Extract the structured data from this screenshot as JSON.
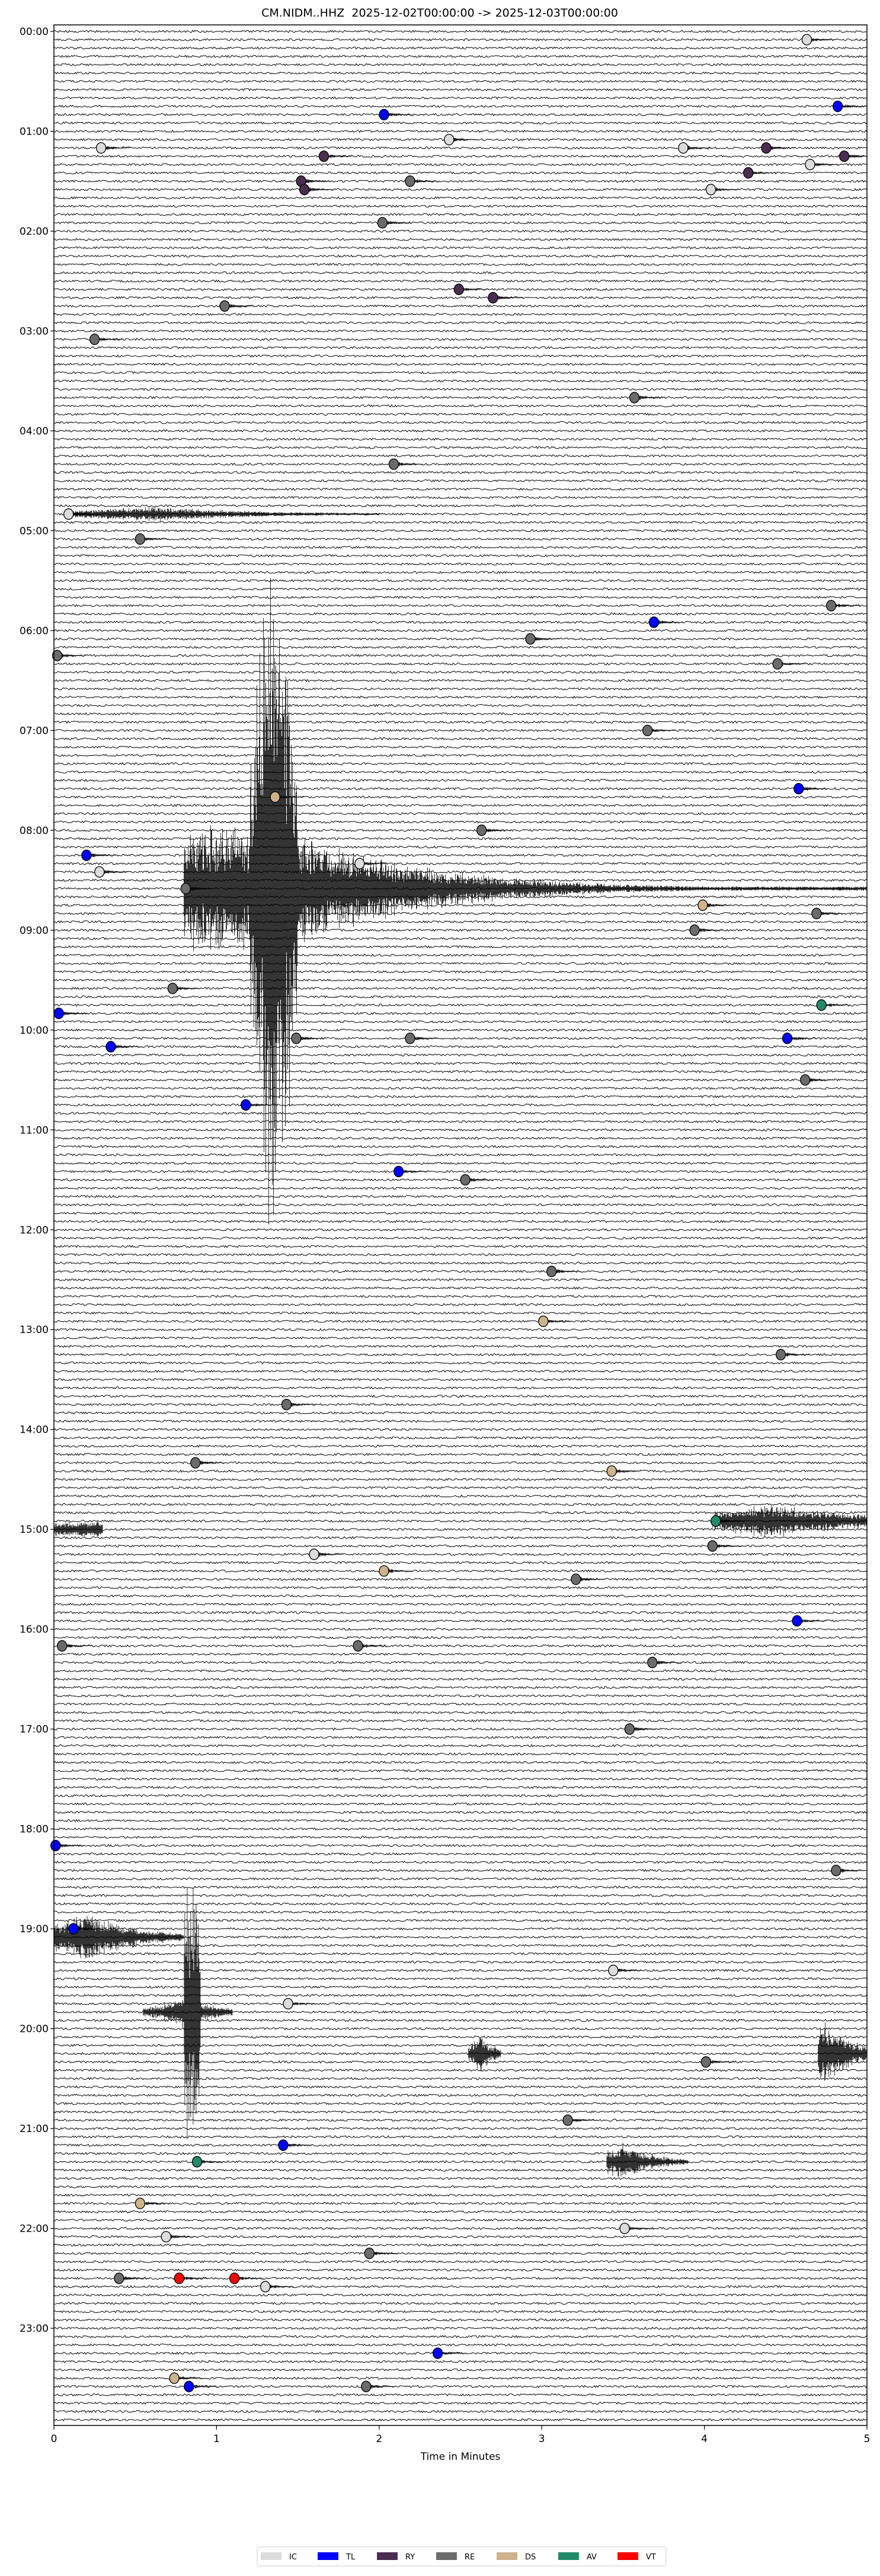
{
  "chart_data": {
    "type": "helicorder",
    "title": "CM.NIDM..HHZ  2025-12-02T00:00:00 -> 2025-12-03T00:00:00",
    "xlabel": "Time in Minutes",
    "xlim": [
      0,
      5
    ],
    "x_ticks": [
      "0",
      "1",
      "2",
      "3",
      "4",
      "5"
    ],
    "line_interval_minutes": 5,
    "start": "2025-12-02T00:00:00",
    "end": "2025-12-03T00:00:00",
    "y_ticks": [
      "00:00",
      "01:00",
      "02:00",
      "03:00",
      "04:00",
      "05:00",
      "06:00",
      "07:00",
      "08:00",
      "09:00",
      "10:00",
      "11:00",
      "12:00",
      "13:00",
      "14:00",
      "15:00",
      "16:00",
      "17:00",
      "18:00",
      "19:00",
      "20:00",
      "21:00",
      "22:00",
      "23:00"
    ],
    "legend": {
      "placement": "bottom-center",
      "entries": [
        {
          "label": "IC",
          "color": "#dcdcdc"
        },
        {
          "label": "TL",
          "color": "#0000ff"
        },
        {
          "label": "RY",
          "color": "#4b2d52"
        },
        {
          "label": "RE",
          "color": "#6b6b6b"
        },
        {
          "label": "DS",
          "color": "#cdb38b"
        },
        {
          "label": "AV",
          "color": "#218b69"
        },
        {
          "label": "VT",
          "color": "#ff0000"
        }
      ]
    },
    "events": [
      {
        "line": "00:05",
        "minute": 4.63,
        "class": "IC"
      },
      {
        "line": "00:45",
        "minute": 4.82,
        "class": "TL"
      },
      {
        "line": "00:50",
        "minute": 2.03,
        "class": "TL"
      },
      {
        "line": "01:05",
        "minute": 2.43,
        "class": "IC"
      },
      {
        "line": "01:10",
        "minute": 0.29,
        "class": "IC"
      },
      {
        "line": "01:10",
        "minute": 3.87,
        "class": "IC"
      },
      {
        "line": "01:10",
        "minute": 4.38,
        "class": "RY"
      },
      {
        "line": "01:15",
        "minute": 1.66,
        "class": "RY"
      },
      {
        "line": "01:15",
        "minute": 4.86,
        "class": "RY"
      },
      {
        "line": "01:20",
        "minute": 4.65,
        "class": "IC"
      },
      {
        "line": "01:25",
        "minute": 4.27,
        "class": "RY"
      },
      {
        "line": "01:30",
        "minute": 1.52,
        "class": "RY"
      },
      {
        "line": "01:30",
        "minute": 2.19,
        "class": "RE"
      },
      {
        "line": "01:35",
        "minute": 1.54,
        "class": "RY"
      },
      {
        "line": "01:35",
        "minute": 4.04,
        "class": "IC"
      },
      {
        "line": "01:55",
        "minute": 2.02,
        "class": "RE"
      },
      {
        "line": "02:35",
        "minute": 2.49,
        "class": "RY"
      },
      {
        "line": "02:40",
        "minute": 2.7,
        "class": "RY"
      },
      {
        "line": "02:45",
        "minute": 1.05,
        "class": "RE"
      },
      {
        "line": "03:05",
        "minute": 0.25,
        "class": "RE"
      },
      {
        "line": "03:40",
        "minute": 3.57,
        "class": "RE"
      },
      {
        "line": "04:20",
        "minute": 2.09,
        "class": "RE"
      },
      {
        "line": "04:50",
        "minute": 0.09,
        "class": "IC"
      },
      {
        "line": "05:05",
        "minute": 0.53,
        "class": "RE"
      },
      {
        "line": "05:45",
        "minute": 4.78,
        "class": "RE"
      },
      {
        "line": "05:55",
        "minute": 3.69,
        "class": "TL"
      },
      {
        "line": "06:05",
        "minute": 2.93,
        "class": "RE"
      },
      {
        "line": "06:15",
        "minute": 0.02,
        "class": "RE"
      },
      {
        "line": "06:20",
        "minute": 4.45,
        "class": "RE"
      },
      {
        "line": "07:00",
        "minute": 3.65,
        "class": "RE"
      },
      {
        "line": "07:35",
        "minute": 4.58,
        "class": "TL"
      },
      {
        "line": "07:40",
        "minute": 1.36,
        "class": "DS"
      },
      {
        "line": "08:00",
        "minute": 2.63,
        "class": "RE"
      },
      {
        "line": "08:15",
        "minute": 0.2,
        "class": "TL"
      },
      {
        "line": "08:20",
        "minute": 1.88,
        "class": "IC"
      },
      {
        "line": "08:25",
        "minute": 0.28,
        "class": "IC"
      },
      {
        "line": "08:35",
        "minute": 0.81,
        "class": "RE"
      },
      {
        "line": "08:45",
        "minute": 3.99,
        "class": "DS"
      },
      {
        "line": "08:50",
        "minute": 4.69,
        "class": "RE"
      },
      {
        "line": "09:00",
        "minute": 3.94,
        "class": "RE"
      },
      {
        "line": "09:35",
        "minute": 0.73,
        "class": "RE"
      },
      {
        "line": "09:45",
        "minute": 4.72,
        "class": "AV"
      },
      {
        "line": "09:50",
        "minute": 0.03,
        "class": "TL"
      },
      {
        "line": "10:05",
        "minute": 1.49,
        "class": "RE"
      },
      {
        "line": "10:05",
        "minute": 2.19,
        "class": "RE"
      },
      {
        "line": "10:05",
        "minute": 4.51,
        "class": "TL"
      },
      {
        "line": "10:10",
        "minute": 0.35,
        "class": "TL"
      },
      {
        "line": "10:30",
        "minute": 4.62,
        "class": "RE"
      },
      {
        "line": "10:45",
        "minute": 1.18,
        "class": "TL"
      },
      {
        "line": "11:25",
        "minute": 2.12,
        "class": "TL"
      },
      {
        "line": "11:30",
        "minute": 2.53,
        "class": "RE"
      },
      {
        "line": "12:25",
        "minute": 3.06,
        "class": "RE"
      },
      {
        "line": "12:55",
        "minute": 3.01,
        "class": "DS"
      },
      {
        "line": "13:15",
        "minute": 4.47,
        "class": "RE"
      },
      {
        "line": "13:45",
        "minute": 1.43,
        "class": "RE"
      },
      {
        "line": "14:20",
        "minute": 0.87,
        "class": "RE"
      },
      {
        "line": "14:25",
        "minute": 3.43,
        "class": "DS"
      },
      {
        "line": "14:55",
        "minute": 4.07,
        "class": "AV"
      },
      {
        "line": "15:10",
        "minute": 4.05,
        "class": "RE"
      },
      {
        "line": "15:15",
        "minute": 1.6,
        "class": "IC"
      },
      {
        "line": "15:25",
        "minute": 2.03,
        "class": "DS"
      },
      {
        "line": "15:30",
        "minute": 3.21,
        "class": "RE"
      },
      {
        "line": "15:55",
        "minute": 4.57,
        "class": "TL"
      },
      {
        "line": "16:10",
        "minute": 0.05,
        "class": "RE"
      },
      {
        "line": "16:10",
        "minute": 1.87,
        "class": "RE"
      },
      {
        "line": "16:20",
        "minute": 3.68,
        "class": "RE"
      },
      {
        "line": "17:00",
        "minute": 3.54,
        "class": "RE"
      },
      {
        "line": "18:10",
        "minute": 0.01,
        "class": "TL"
      },
      {
        "line": "18:25",
        "minute": 4.81,
        "class": "RE"
      },
      {
        "line": "19:00",
        "minute": 0.12,
        "class": "TL"
      },
      {
        "line": "19:25",
        "minute": 3.44,
        "class": "IC"
      },
      {
        "line": "19:45",
        "minute": 1.44,
        "class": "IC"
      },
      {
        "line": "20:20",
        "minute": 4.01,
        "class": "RE"
      },
      {
        "line": "20:55",
        "minute": 3.16,
        "class": "RE"
      },
      {
        "line": "21:10",
        "minute": 1.41,
        "class": "TL"
      },
      {
        "line": "21:20",
        "minute": 0.88,
        "class": "AV"
      },
      {
        "line": "21:45",
        "minute": 0.53,
        "class": "DS"
      },
      {
        "line": "22:00",
        "minute": 3.51,
        "class": "IC"
      },
      {
        "line": "22:05",
        "minute": 0.69,
        "class": "IC"
      },
      {
        "line": "22:15",
        "minute": 1.94,
        "class": "RE"
      },
      {
        "line": "22:30",
        "minute": 0.4,
        "class": "RE"
      },
      {
        "line": "22:30",
        "minute": 0.77,
        "class": "VT"
      },
      {
        "line": "22:30",
        "minute": 1.11,
        "class": "VT"
      },
      {
        "line": "22:35",
        "minute": 1.3,
        "class": "IC"
      },
      {
        "line": "23:15",
        "minute": 2.36,
        "class": "TL"
      },
      {
        "line": "23:30",
        "minute": 0.74,
        "class": "DS"
      },
      {
        "line": "23:35",
        "minute": 0.83,
        "class": "TL"
      },
      {
        "line": "23:35",
        "minute": 1.92,
        "class": "RE"
      }
    ]
  }
}
